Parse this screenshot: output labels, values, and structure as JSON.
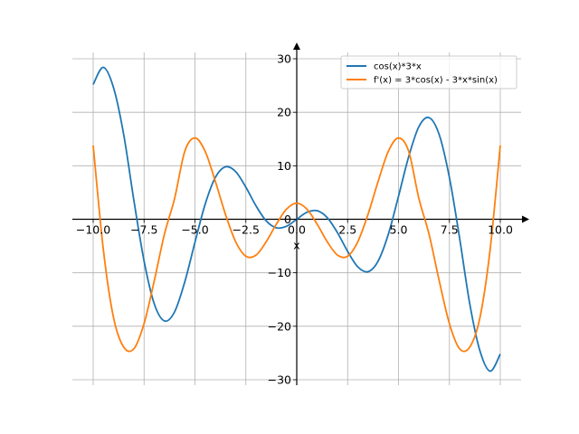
{
  "chart_data": {
    "type": "line",
    "title": "",
    "xlabel": "x",
    "ylabel": "",
    "xlim": [
      -10.0,
      10.0
    ],
    "ylim": [
      -30,
      30
    ],
    "grid": true,
    "legend_position": "top-right",
    "xticks": [
      -10.0,
      -7.5,
      -5.0,
      -2.5,
      0.0,
      2.5,
      5.0,
      7.5,
      10.0
    ],
    "xtick_labels": [
      "−10.0",
      "−7.5",
      "−5.0",
      "−2.5",
      "0.0",
      "2.5",
      "5.0",
      "7.5",
      "10.0"
    ],
    "yticks": [
      -30,
      -20,
      -10,
      0,
      10,
      20,
      30
    ],
    "ytick_labels": [
      "−30",
      "−20",
      "−10",
      "0",
      "10",
      "20",
      "30"
    ],
    "series": [
      {
        "name": "cos(x)*3*x",
        "color": "#1f77b4",
        "x": [
          -10,
          -9.5,
          -9,
          -8.5,
          -8,
          -7.5,
          -7,
          -6.5,
          -6,
          -5.5,
          -5,
          -4.5,
          -4,
          -3.5,
          -3,
          -2.5,
          -2,
          -1.5,
          -1,
          -0.5,
          0,
          0.5,
          1,
          1.5,
          2,
          2.5,
          3,
          3.5,
          4,
          4.5,
          5,
          5.5,
          6,
          6.5,
          7,
          7.5,
          8,
          8.5,
          9,
          9.5,
          10
        ],
        "y": [
          25.2,
          28.4,
          24.6,
          15.8,
          3.5,
          -7.8,
          -15.8,
          -19.0,
          -17.3,
          -11.7,
          -4.3,
          2.8,
          7.8,
          9.8,
          8.9,
          6.0,
          2.5,
          -0.3,
          -1.6,
          -1.3,
          0.0,
          1.3,
          1.6,
          0.3,
          -2.5,
          -6.0,
          -8.9,
          -9.8,
          -7.8,
          -2.8,
          4.3,
          11.7,
          17.3,
          19.0,
          15.8,
          7.8,
          -3.5,
          -15.8,
          -24.6,
          -28.4,
          -25.2
        ]
      },
      {
        "name": "f'(x) = 3*cos(x) - 3*x*sin(x)",
        "color": "#ff7f0e",
        "x": [
          -10,
          -9.5,
          -9,
          -8.5,
          -8,
          -7.5,
          -7,
          -6.5,
          -6,
          -5.5,
          -5,
          -4.5,
          -4,
          -3.5,
          -3,
          -2.5,
          -2,
          -1.5,
          -1,
          -0.5,
          0,
          0.5,
          1,
          1.5,
          2,
          2.5,
          3,
          3.5,
          4,
          4.5,
          5,
          5.5,
          6,
          6.5,
          7,
          7.5,
          8,
          8.5,
          9,
          9.5,
          10
        ],
        "y": [
          13.8,
          -5.7,
          -18.4,
          -23.9,
          -24.2,
          -19.5,
          -11.5,
          -2.8,
          3.9,
          12.7,
          15.2,
          12.7,
          7.1,
          0.9,
          -4.2,
          -6.9,
          -6.7,
          -4.2,
          -0.9,
          1.9,
          3.0,
          1.9,
          -0.9,
          -4.2,
          -6.7,
          -6.9,
          -4.2,
          0.9,
          7.1,
          12.7,
          15.2,
          12.7,
          3.9,
          -2.8,
          -11.5,
          -19.5,
          -24.2,
          -23.9,
          -18.4,
          -5.7,
          13.8
        ]
      }
    ]
  }
}
